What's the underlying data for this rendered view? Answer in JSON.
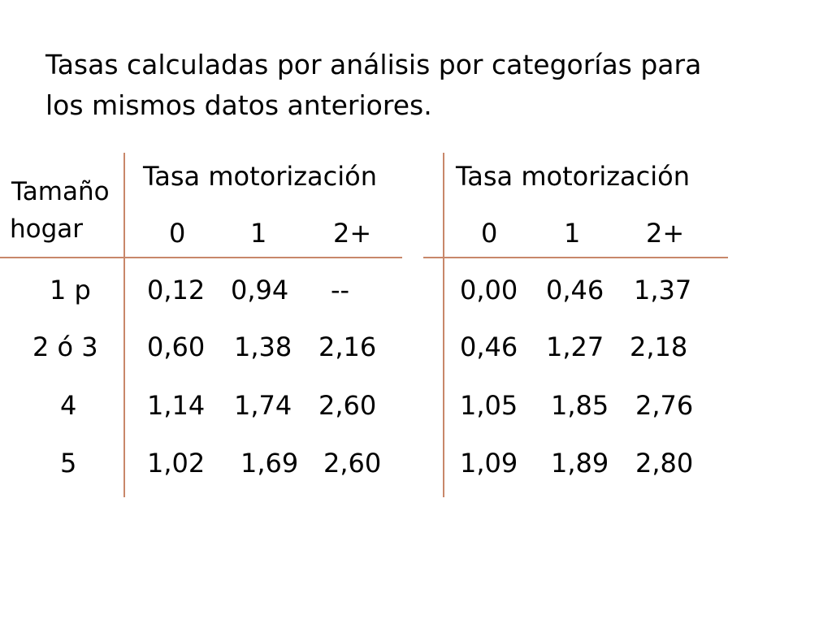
{
  "title": {
    "line1": "Tasas calculadas por análisis por categorías para",
    "line2": "los mismos datos anteriores."
  },
  "row_header": {
    "line1": "Tamaño",
    "line2": "hogar"
  },
  "tables": [
    {
      "header": "Tasa motorización",
      "columns": [
        "0",
        "1",
        "2+"
      ],
      "rows": [
        [
          "0,12",
          "0,94",
          "--"
        ],
        [
          "0,60",
          "1,38",
          "2,16"
        ],
        [
          "1,14",
          "1,74",
          "2,60"
        ],
        [
          "1,02",
          "1,69",
          "2,60"
        ]
      ]
    },
    {
      "header": "Tasa motorización",
      "columns": [
        "0",
        "1",
        "2+"
      ],
      "rows": [
        [
          "0,00",
          "0,46",
          "1,37"
        ],
        [
          "0,46",
          "1,27",
          "2,18"
        ],
        [
          "1,05",
          "1,85",
          "2,76"
        ],
        [
          "1,09",
          "1,89",
          "2,80"
        ]
      ]
    }
  ],
  "row_labels": [
    "1 p",
    "2 ó 3",
    "4",
    "5"
  ],
  "colors": {
    "rule": "#c8876a",
    "text": "#000000"
  }
}
